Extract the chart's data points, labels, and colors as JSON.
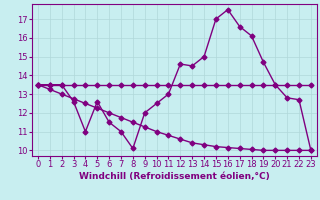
{
  "x": [
    0,
    1,
    2,
    3,
    4,
    5,
    6,
    7,
    8,
    9,
    10,
    11,
    12,
    13,
    14,
    15,
    16,
    17,
    18,
    19,
    20,
    21,
    22,
    23
  ],
  "line1": [
    13.5,
    13.5,
    13.5,
    12.6,
    11.0,
    12.6,
    11.5,
    11.0,
    10.1,
    12.0,
    12.5,
    13.0,
    14.6,
    14.5,
    15.0,
    17.0,
    17.5,
    16.6,
    16.1,
    14.7,
    13.5,
    12.8,
    12.7,
    10.0
  ],
  "line2": [
    13.5,
    13.5,
    13.5,
    13.5,
    13.5,
    13.5,
    13.5,
    13.5,
    13.5,
    13.5,
    13.5,
    13.5,
    13.5,
    13.5,
    13.5,
    13.5,
    13.5,
    13.5,
    13.5,
    13.5,
    13.5,
    13.5,
    13.5,
    13.5
  ],
  "line3": [
    13.5,
    13.25,
    13.0,
    12.75,
    12.5,
    12.25,
    12.0,
    11.75,
    11.5,
    11.25,
    11.0,
    10.8,
    10.6,
    10.4,
    10.3,
    10.2,
    10.15,
    10.1,
    10.05,
    10.0,
    10.0,
    10.0,
    10.0,
    10.0
  ],
  "line_color": "#800080",
  "bg_color": "#c8eef0",
  "grid_color": "#b0d8da",
  "xlabel": "Windchill (Refroidissement éolien,°C)",
  "ylim": [
    9.7,
    17.8
  ],
  "xlim": [
    -0.5,
    23.5
  ],
  "yticks": [
    10,
    11,
    12,
    13,
    14,
    15,
    16,
    17
  ],
  "xticks": [
    0,
    1,
    2,
    3,
    4,
    5,
    6,
    7,
    8,
    9,
    10,
    11,
    12,
    13,
    14,
    15,
    16,
    17,
    18,
    19,
    20,
    21,
    22,
    23
  ],
  "marker": "D",
  "markersize": 2.5,
  "linewidth": 1.0,
  "xlabel_fontsize": 6.5,
  "tick_fontsize": 6.0
}
